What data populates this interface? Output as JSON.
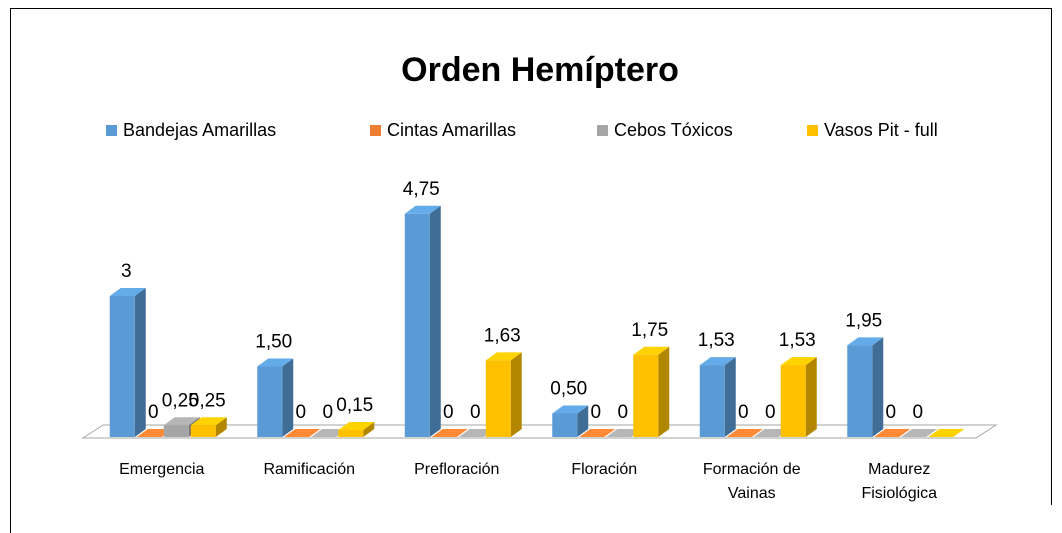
{
  "chart_data": {
    "type": "bar3d",
    "title": "Orden Hemíptero",
    "categories": [
      "Emergencia",
      "Ramificación",
      "Prefloración",
      "Floración",
      "Formación de Vainas",
      "Madurez Fisiológica"
    ],
    "series": [
      {
        "name": "Bandejas Amarillas",
        "color": "#5b9bd5",
        "values": [
          3,
          1.5,
          4.75,
          0.5,
          1.53,
          1.95
        ],
        "value_labels": [
          "3",
          "1,50",
          "4,75",
          "0,50",
          "1,53",
          "1,95"
        ]
      },
      {
        "name": "Cintas Amarillas",
        "color": "#ed7d31",
        "values": [
          0,
          0,
          0,
          0,
          0,
          0
        ],
        "value_labels": [
          "0",
          "0",
          "0",
          "0",
          "0",
          "0"
        ]
      },
      {
        "name": "Cebos Tóxicos",
        "color": "#a5a5a5",
        "values": [
          0.25,
          0,
          0,
          0,
          0,
          0
        ],
        "value_labels": [
          "0,25",
          "0",
          "0",
          "0",
          "0",
          "0"
        ]
      },
      {
        "name": "Vasos Pit - full",
        "color": "#ffc000",
        "values": [
          0.25,
          0.15,
          1.63,
          1.75,
          1.53,
          0
        ],
        "value_labels": [
          "0,25",
          "0,15",
          "1,63",
          "1,75",
          "1,53",
          ""
        ]
      }
    ],
    "legend": "top"
  }
}
